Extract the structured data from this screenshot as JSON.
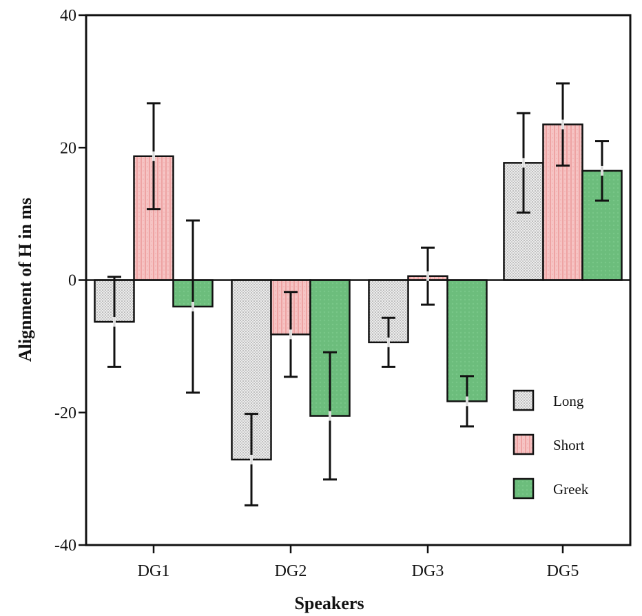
{
  "chart_data": {
    "type": "bar",
    "title": "",
    "xlabel": "Speakers",
    "ylabel": "Alignment of H in ms",
    "ylim": [
      -40,
      40
    ],
    "yticks": [
      40,
      20,
      0,
      -20,
      -40
    ],
    "ytick_labels": [
      "40",
      "20",
      "0",
      "-20",
      "-40"
    ],
    "categories": [
      "DG1",
      "DG2",
      "DG3",
      "DG5"
    ],
    "grid": false,
    "legend_position": "bottom-right",
    "series": [
      {
        "name": "Long",
        "color": "#e4e4e4",
        "pattern": "dots",
        "values": [
          -6.3,
          -27.1,
          -9.4,
          17.7
        ],
        "errors": [
          6.8,
          6.9,
          3.7,
          7.5
        ]
      },
      {
        "name": "Short",
        "color": "#f4b8b8",
        "pattern": "stripes",
        "values": [
          18.7,
          -8.2,
          0.6,
          23.5
        ],
        "errors": [
          8.0,
          6.4,
          4.3,
          6.2
        ]
      },
      {
        "name": "Greek",
        "color": "#6fc07f",
        "pattern": "solid",
        "values": [
          -4.0,
          -20.5,
          -18.3,
          16.5
        ],
        "errors": [
          13.0,
          9.6,
          3.8,
          4.5
        ]
      }
    ]
  }
}
